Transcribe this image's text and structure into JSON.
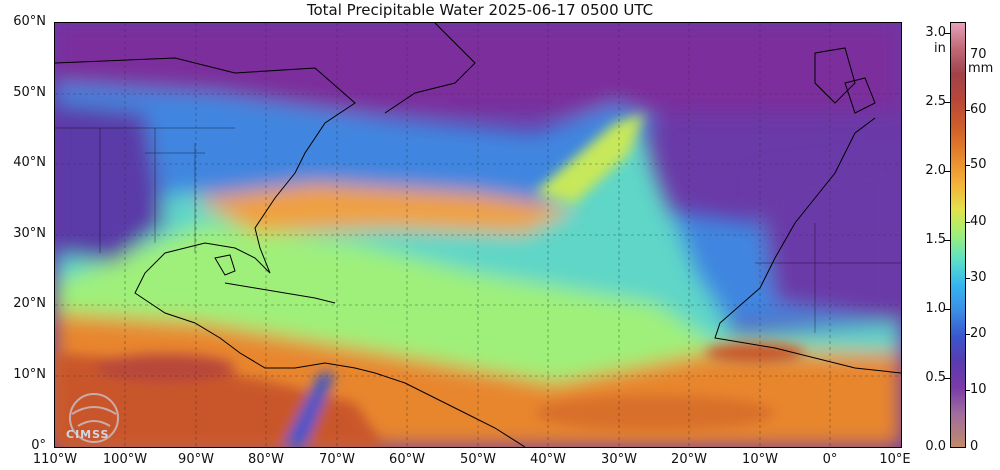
{
  "title": "Total Precipitable Water  2025-06-17 0500 UTC",
  "lat_labels": [
    "60°N",
    "50°N",
    "40°N",
    "30°N",
    "20°N",
    "10°N",
    "0°"
  ],
  "lon_labels": [
    "110°W",
    "100°W",
    "90°W",
    "80°W",
    "70°W",
    "60°W",
    "50°W",
    "40°W",
    "30°W",
    "20°W",
    "10°W",
    "0°",
    "10°E"
  ],
  "colorbar": {
    "inch_unit": "in",
    "mm_unit": "mm",
    "inch_ticks": [
      "3.0",
      "2.5",
      "2.0",
      "1.5",
      "1.0",
      "0.5",
      "0.0"
    ],
    "mm_ticks": [
      "70",
      "60",
      "50",
      "40",
      "30",
      "20",
      "10",
      "0"
    ]
  },
  "logo_text": "CIMSS",
  "colors": {
    "dry": "#7a3ba8",
    "moderate": "#3b8ce6",
    "moist": "#9cf07a",
    "wet": "#e88a2e",
    "very_wet": "#b8463a"
  }
}
